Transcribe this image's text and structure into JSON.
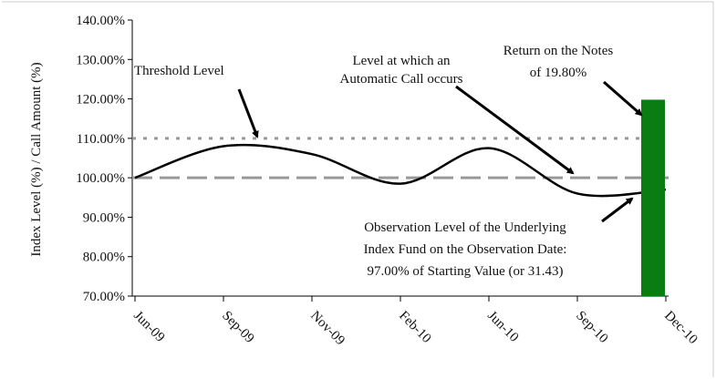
{
  "chart_data": {
    "type": "line",
    "y_axis_label": "Index Level (%) / Call Amount (%)",
    "categories": [
      "Jun-09",
      "Sep-09",
      "Nov-09",
      "Feb-10",
      "Jun-10",
      "Sep-10",
      "Dec-10"
    ],
    "series": [
      {
        "color": "#000000",
        "values": [
          100,
          108,
          106,
          98.5,
          107.5,
          96,
          97
        ]
      }
    ],
    "reference_lines": [
      {
        "value": 110,
        "style": "dotted",
        "color": "#999999"
      },
      {
        "value": 100,
        "style": "dashed",
        "color": "#999999"
      }
    ],
    "bar": {
      "value": 119.8,
      "color": "#0a7d12"
    },
    "ylim": [
      70,
      140
    ],
    "yticks": [
      {
        "value": 70,
        "label": "70.00%"
      },
      {
        "value": 80,
        "label": "80.00%"
      },
      {
        "value": 90,
        "label": "90.00%"
      },
      {
        "value": 100,
        "label": "100.00%"
      },
      {
        "value": 110,
        "label": "110.00%"
      },
      {
        "value": 120,
        "label": "120.00%"
      },
      {
        "value": 130,
        "label": "130.00%"
      },
      {
        "value": 140,
        "label": "140.00%"
      }
    ],
    "annotations": [
      {
        "lines": [
          "Threshold Level"
        ]
      },
      {
        "lines": [
          "Level at which an",
          "Automatic Call occurs"
        ]
      },
      {
        "lines": [
          "Return on the Notes",
          "of 19.80%"
        ]
      },
      {
        "lines": [
          "Observation Level of the Underlying",
          "Index Fund on the Observation Date:",
          "97.00% of Starting Value (or 31.43)"
        ]
      }
    ]
  }
}
